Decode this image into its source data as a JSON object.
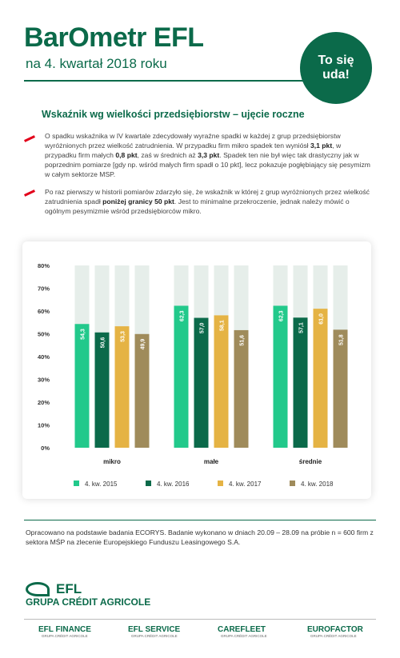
{
  "header": {
    "logo": "BarOmetr EFL",
    "subtitle": "na 4. kwartał 2018 roku",
    "badge": [
      "To się",
      "uda!"
    ]
  },
  "section_title": "Wskaźnik wg wielkości przedsiębiorstw – ujęcie roczne",
  "paragraphs": [
    [
      {
        "text": "O spadku wskaźnika w IV kwartale zdecydowały wyraźne spadki w każdej z grup przedsiębiorstw wyróżnionych przez wielkość zatrudnienia. W przypadku firm mikro spadek ten wyniósł "
      },
      {
        "text": "3,1 pkt",
        "bold": true
      },
      {
        "text": ", w przypadku firm małych "
      },
      {
        "text": "0,8 pkt",
        "bold": true
      },
      {
        "text": ", zaś w średnich aż "
      },
      {
        "text": "3,3 pkt",
        "bold": true
      },
      {
        "text": ". Spadek ten nie był więc tak drastyczny jak w poprzednim pomiarze [gdy np. wśród małych firm spadł o 10 pkt], lecz pokazuje pogłębiający się pesymizm w całym sektorze MSP."
      }
    ],
    [
      {
        "text": "Po raz pierwszy w historii pomiarów zdarzyło się, że wskaźnik w której z grup wyróżnionych przez wielkość zatrudnienia spadł "
      },
      {
        "text": "poniżej granicy 50 pkt",
        "bold": true
      },
      {
        "text": ". Jest to minimalne przekroczenie, jednak należy mówić o ogólnym pesymizmie wśród przedsiębiorców mikro."
      }
    ]
  ],
  "chart_data": {
    "type": "bar",
    "categories": [
      "mikro",
      "małe",
      "średnie"
    ],
    "series": [
      {
        "name": "4. kw. 2015",
        "color": "#22c98b",
        "values": [
          54.3,
          62.3,
          62.3
        ],
        "value_labels": [
          "54,3",
          "62,3",
          "62,3"
        ]
      },
      {
        "name": "4. kw. 2016",
        "color": "#0b6a4a",
        "values": [
          50.6,
          57.0,
          57.1
        ],
        "value_labels": [
          "50,6",
          "57,0",
          "57,1"
        ]
      },
      {
        "name": "4. kw. 2017",
        "color": "#e5b344",
        "values": [
          53.3,
          58.1,
          61.0
        ],
        "value_labels": [
          "53,3",
          "58,1",
          "61,0"
        ]
      },
      {
        "name": "4. kw. 2018",
        "color": "#9f8b5b",
        "values": [
          49.9,
          51.6,
          51.8
        ],
        "value_labels": [
          "49,9",
          "51,6",
          "51,8"
        ]
      }
    ],
    "ylim": [
      0,
      80
    ],
    "yticks": [
      {
        "value": 0,
        "label": "0%"
      },
      {
        "value": 10,
        "label": "10%"
      },
      {
        "value": 20,
        "label": "20%"
      },
      {
        "value": 30,
        "label": "30%"
      },
      {
        "value": 40,
        "label": "40%"
      },
      {
        "value": 50,
        "label": "50%"
      },
      {
        "value": 60,
        "label": "60%"
      },
      {
        "value": 70,
        "label": "70%"
      },
      {
        "value": 80,
        "label": "80%"
      }
    ]
  },
  "footer": {
    "note": "Opracowano na podstawie badania ECORYS. Badanie wykonano w dniach 20.09 – 28.09 na próbie n = 600 firm z sektora MŚP na zlecenie Europejskiego Funduszu Leasingowego S.A.",
    "logo": [
      "EFL",
      "GRUPA CRÉDIT AGRICOLE"
    ],
    "brands": [
      {
        "name": "EFL FINANCE",
        "sub": "GRUPA CRÉDIT AGRICOLE"
      },
      {
        "name": "EFL SERVICE",
        "sub": "GRUPA CRÉDIT AGRICOLE"
      },
      {
        "name": "CAREFLEET",
        "sub": "GRUPA CRÉDIT AGRICOLE"
      },
      {
        "name": "EUROFACTOR",
        "sub": "GRUPA CRÉDIT AGRICOLE"
      }
    ]
  }
}
